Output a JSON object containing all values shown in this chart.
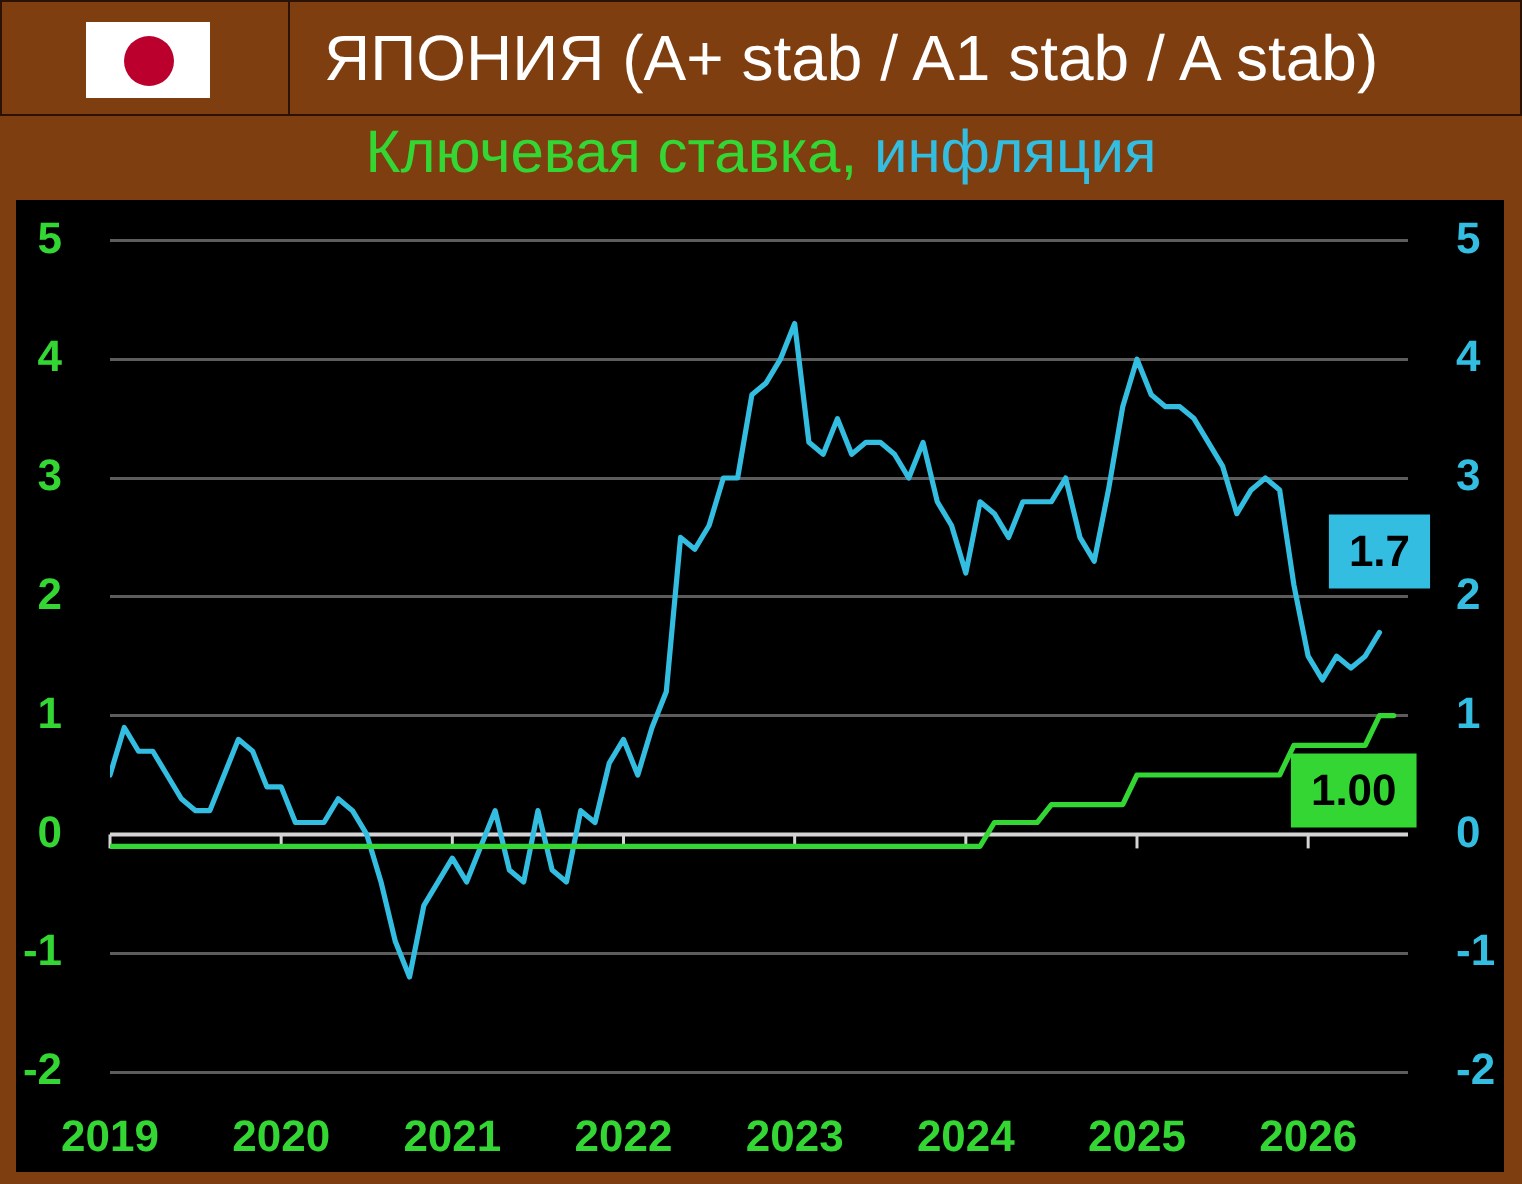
{
  "chart_data": {
    "type": "line",
    "title": "ЯПОНИЯ (A+ stab / A1 stab / A stab)",
    "legend": "top",
    "grid": "y",
    "marker": "none",
    "x": [
      "2019-01",
      "2019-02",
      "2019-03",
      "2019-04",
      "2019-05",
      "2019-06",
      "2019-07",
      "2019-08",
      "2019-09",
      "2019-10",
      "2019-11",
      "2019-12",
      "2020-01",
      "2020-02",
      "2020-03",
      "2020-04",
      "2020-05",
      "2020-06",
      "2020-07",
      "2020-08",
      "2020-09",
      "2020-10",
      "2020-11",
      "2020-12",
      "2021-01",
      "2021-02",
      "2021-03",
      "2021-04",
      "2021-05",
      "2021-06",
      "2021-07",
      "2021-08",
      "2021-09",
      "2021-10",
      "2021-11",
      "2021-12",
      "2022-01",
      "2022-02",
      "2022-03",
      "2022-04",
      "2022-05",
      "2022-06",
      "2022-07",
      "2022-08",
      "2022-09",
      "2022-10",
      "2022-11",
      "2022-12",
      "2023-01",
      "2023-02",
      "2023-03",
      "2023-04",
      "2023-05",
      "2023-06",
      "2023-07",
      "2023-08",
      "2023-09",
      "2023-10",
      "2023-11",
      "2023-12",
      "2024-01",
      "2024-02",
      "2024-03",
      "2024-04",
      "2024-05",
      "2024-06",
      "2024-07",
      "2024-08",
      "2024-09",
      "2024-10",
      "2024-11",
      "2024-12",
      "2025-01",
      "2025-02",
      "2025-03",
      "2025-04",
      "2025-05",
      "2025-06",
      "2025-07",
      "2025-08",
      "2025-09",
      "2025-10",
      "2025-11",
      "2025-12",
      "2026-01",
      "2026-02",
      "2026-03",
      "2026-04",
      "2026-05",
      "2026-06",
      "2026-07"
    ],
    "xlim": [
      "2019-01",
      "2026-08"
    ],
    "xticks": [
      "2019",
      "2020",
      "2021",
      "2022",
      "2023",
      "2024",
      "2025",
      "2026"
    ],
    "ylim": [
      -2,
      5
    ],
    "yticks": [
      -2,
      -1,
      0,
      1,
      2,
      3,
      4,
      5
    ],
    "y2lim": [
      -2,
      5
    ],
    "y2ticks": [
      -2,
      -1,
      0,
      1,
      2,
      3,
      4,
      5
    ],
    "series": [
      {
        "name": "Ключевая ставка,",
        "color": "#33d633",
        "values": [
          -0.1,
          -0.1,
          -0.1,
          -0.1,
          -0.1,
          -0.1,
          -0.1,
          -0.1,
          -0.1,
          -0.1,
          -0.1,
          -0.1,
          -0.1,
          -0.1,
          -0.1,
          -0.1,
          -0.1,
          -0.1,
          -0.1,
          -0.1,
          -0.1,
          -0.1,
          -0.1,
          -0.1,
          -0.1,
          -0.1,
          -0.1,
          -0.1,
          -0.1,
          -0.1,
          -0.1,
          -0.1,
          -0.1,
          -0.1,
          -0.1,
          -0.1,
          -0.1,
          -0.1,
          -0.1,
          -0.1,
          -0.1,
          -0.1,
          -0.1,
          -0.1,
          -0.1,
          -0.1,
          -0.1,
          -0.1,
          -0.1,
          -0.1,
          -0.1,
          -0.1,
          -0.1,
          -0.1,
          -0.1,
          -0.1,
          -0.1,
          -0.1,
          -0.1,
          -0.1,
          -0.1,
          -0.1,
          0.1,
          0.1,
          0.1,
          0.1,
          0.25,
          0.25,
          0.25,
          0.25,
          0.25,
          0.25,
          0.5,
          0.5,
          0.5,
          0.5,
          0.5,
          0.5,
          0.5,
          0.5,
          0.5,
          0.5,
          0.5,
          0.75,
          0.75,
          0.75,
          0.75,
          0.75,
          0.75,
          1.0,
          1.0
        ],
        "value_labels": [
          null,
          null,
          null,
          null,
          null,
          null,
          null,
          null,
          null,
          null,
          null,
          null,
          null,
          null,
          null,
          null,
          null,
          null,
          null,
          null,
          null,
          null,
          null,
          null,
          null,
          null,
          null,
          null,
          null,
          null,
          null,
          null,
          null,
          null,
          null,
          null,
          null,
          null,
          null,
          null,
          null,
          null,
          null,
          null,
          null,
          null,
          null,
          null,
          null,
          null,
          null,
          null,
          null,
          null,
          null,
          null,
          null,
          null,
          null,
          null,
          null,
          null,
          null,
          null,
          null,
          null,
          null,
          null,
          null,
          null,
          null,
          null,
          null,
          null,
          null,
          null,
          null,
          null,
          null,
          null,
          null,
          null,
          null,
          null,
          null,
          null,
          null,
          null,
          null,
          null,
          "1.00"
        ]
      },
      {
        "name": "инфляция",
        "color": "#33bde0",
        "axis": "y2",
        "values": [
          0.5,
          0.9,
          0.7,
          0.7,
          0.5,
          0.3,
          0.2,
          0.2,
          0.5,
          0.8,
          0.7,
          0.4,
          0.4,
          0.1,
          0.1,
          0.1,
          0.3,
          0.2,
          0.0,
          -0.4,
          -0.9,
          -1.2,
          -0.6,
          -0.4,
          -0.2,
          -0.4,
          -0.1,
          0.2,
          -0.3,
          -0.4,
          0.2,
          -0.3,
          -0.4,
          0.2,
          0.1,
          0.6,
          0.8,
          0.5,
          0.9,
          1.2,
          2.5,
          2.4,
          2.6,
          3.0,
          3.0,
          3.7,
          3.8,
          4.0,
          4.3,
          3.3,
          3.2,
          3.5,
          3.2,
          3.3,
          3.3,
          3.2,
          3.0,
          3.3,
          2.8,
          2.6,
          2.2,
          2.8,
          2.7,
          2.5,
          2.8,
          2.8,
          2.8,
          3.0,
          2.5,
          2.3,
          2.9,
          3.6,
          4.0,
          3.7,
          3.6,
          3.6,
          3.5,
          3.3,
          3.1,
          2.7,
          2.9,
          3.0,
          2.9,
          2.1,
          1.5,
          1.3,
          1.5,
          1.4,
          1.5,
          1.7,
          null
        ],
        "value_labels": [
          null,
          null,
          null,
          null,
          null,
          null,
          null,
          null,
          null,
          null,
          null,
          null,
          null,
          null,
          null,
          null,
          null,
          null,
          null,
          null,
          null,
          null,
          null,
          null,
          null,
          null,
          null,
          null,
          null,
          null,
          null,
          null,
          null,
          null,
          null,
          null,
          null,
          null,
          null,
          null,
          null,
          null,
          null,
          null,
          null,
          null,
          null,
          null,
          null,
          null,
          null,
          null,
          null,
          null,
          null,
          null,
          null,
          null,
          null,
          null,
          null,
          null,
          null,
          null,
          null,
          null,
          null,
          null,
          null,
          null,
          null,
          null,
          null,
          null,
          null,
          null,
          null,
          null,
          null,
          null,
          null,
          null,
          null,
          null,
          null,
          null,
          null,
          null,
          null,
          "1.7",
          null
        ]
      }
    ]
  }
}
